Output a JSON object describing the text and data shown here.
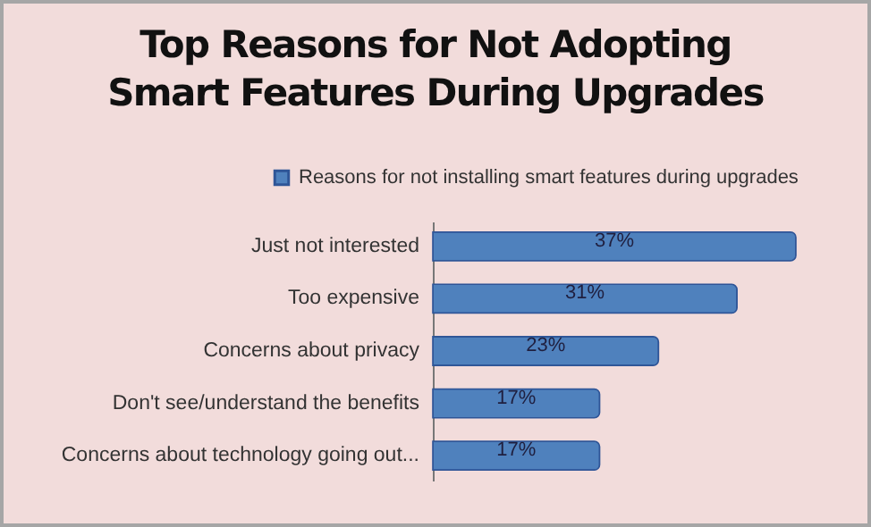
{
  "chart_data": {
    "type": "bar",
    "orientation": "horizontal",
    "title": "Top Reasons for Not Adopting Smart Features During Upgrades",
    "categories": [
      "Just not interested",
      "Too expensive",
      "Concerns about privacy",
      "Don't see/understand the benefits",
      "Concerns about technology going out..."
    ],
    "legend": "top",
    "series": [
      {
        "name": "Reasons for not installing smart features during upgrades",
        "color": "#4f81bd",
        "values": [
          37,
          31,
          23,
          17,
          17
        ],
        "value_labels": [
          "37%",
          "31%",
          "23%",
          "17%",
          "17%"
        ]
      }
    ]
  }
}
